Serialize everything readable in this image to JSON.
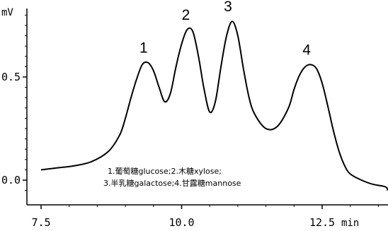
{
  "chart_data": {
    "type": "line",
    "ylabel": "mV",
    "xlabel": "min",
    "xlim": [
      7.5,
      14.0
    ],
    "ylim": [
      -0.08,
      0.82
    ],
    "x_ticks": [
      {
        "value": 7.5,
        "label": "7.5"
      },
      {
        "value": 10.0,
        "label": "10.0"
      },
      {
        "value": 12.5,
        "label": "12.5"
      }
    ],
    "y_ticks": [
      {
        "value": 0.0,
        "label": "0.0"
      },
      {
        "value": 0.5,
        "label": "0.5"
      }
    ],
    "series": [
      {
        "x": [
          7.5,
          7.8,
          8.1,
          8.4,
          8.7,
          8.9,
          9.0,
          9.1,
          9.2,
          9.3,
          9.4,
          9.5,
          9.6,
          9.7,
          9.8,
          9.9,
          10.0,
          10.1,
          10.2,
          10.3,
          10.4,
          10.5,
          10.6,
          10.7,
          10.8,
          10.9,
          11.0,
          11.1,
          11.2,
          11.3,
          11.5,
          11.7,
          11.9,
          12.0,
          12.1,
          12.2,
          12.3,
          12.4,
          12.5,
          12.6,
          12.7,
          12.8,
          12.9,
          13.0,
          13.2,
          13.4,
          13.6,
          13.8,
          14.0
        ],
        "y": [
          0.05,
          0.06,
          0.07,
          0.09,
          0.14,
          0.22,
          0.3,
          0.4,
          0.49,
          0.56,
          0.57,
          0.53,
          0.45,
          0.38,
          0.42,
          0.55,
          0.66,
          0.73,
          0.72,
          0.6,
          0.44,
          0.33,
          0.38,
          0.55,
          0.7,
          0.77,
          0.7,
          0.54,
          0.4,
          0.32,
          0.25,
          0.26,
          0.35,
          0.44,
          0.51,
          0.55,
          0.56,
          0.54,
          0.47,
          0.36,
          0.24,
          0.14,
          0.07,
          0.03,
          0.0,
          -0.02,
          -0.03,
          -0.04,
          -0.05
        ]
      }
    ],
    "peaks": [
      {
        "label": "1",
        "x": 9.4,
        "y": 0.57
      },
      {
        "label": "2",
        "x": 10.15,
        "y": 0.73
      },
      {
        "label": "3",
        "x": 10.9,
        "y": 0.77
      },
      {
        "label": "4",
        "x": 12.3,
        "y": 0.56
      }
    ],
    "annotation_lines": [
      "1.葡萄糖glucose;2.木糖xylose;",
      "3.半乳糖galactose;4.甘露糖mannose"
    ]
  }
}
